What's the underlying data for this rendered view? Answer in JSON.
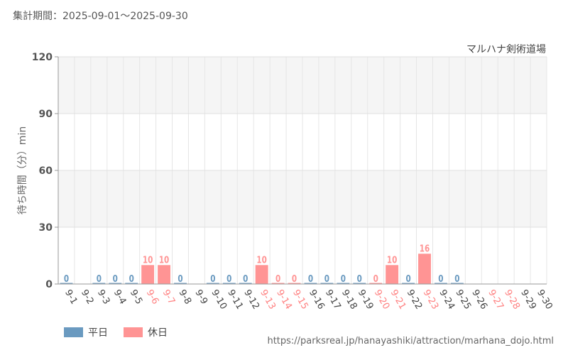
{
  "header": {
    "period": "集計期間：2025-09-01～2025-09-30"
  },
  "legend": {
    "weekday": {
      "label": "平日",
      "color": "#6a9ac0"
    },
    "holiday": {
      "label": "休日",
      "color": "#ff9494"
    }
  },
  "source_url": "https://parksreal.jp/hanayashiki/attraction/marhana_dojo.html",
  "chart_data": {
    "type": "bar",
    "title": "マルハナ剣術道場",
    "ylabel": "待ち時間（分）min",
    "ylim": [
      0,
      120
    ],
    "yticks": [
      0,
      30,
      60,
      90,
      120
    ],
    "categories": [
      "9-1",
      "9-2",
      "9-3",
      "9-4",
      "9-5",
      "9-6",
      "9-7",
      "9-8",
      "9-9",
      "9-10",
      "9-11",
      "9-12",
      "9-13",
      "9-14",
      "9-15",
      "9-16",
      "9-17",
      "9-18",
      "9-19",
      "9-20",
      "9-21",
      "9-22",
      "9-23",
      "9-24",
      "9-25",
      "9-26",
      "9-27",
      "9-28",
      "9-29",
      "9-30"
    ],
    "values": [
      0,
      null,
      0,
      0,
      0,
      10,
      10,
      0,
      null,
      0,
      0,
      0,
      10,
      0,
      0,
      0,
      0,
      0,
      0,
      0,
      10,
      0,
      16,
      0,
      0,
      null,
      null,
      null,
      null,
      null
    ],
    "day_type": [
      "weekday",
      "weekday",
      "weekday",
      "weekday",
      "weekday",
      "holiday",
      "holiday",
      "weekday",
      "weekday",
      "weekday",
      "weekday",
      "weekday",
      "holiday",
      "holiday",
      "holiday",
      "weekday",
      "weekday",
      "weekday",
      "weekday",
      "holiday",
      "holiday",
      "weekday",
      "holiday",
      "weekday",
      "weekday",
      "weekday",
      "holiday",
      "holiday",
      "weekday",
      "weekday"
    ],
    "grid": true,
    "legend_position": "bottom-left"
  }
}
